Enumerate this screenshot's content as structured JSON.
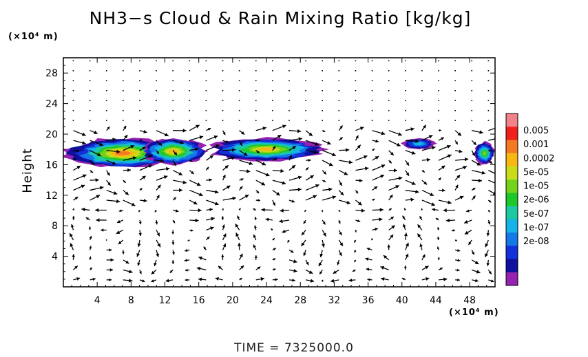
{
  "title": "NH3−s Cloud & Rain Mixing Ratio [kg/kg]",
  "y_unit": "(×10⁴ m)",
  "x_unit": "(×10⁴ m)",
  "time_label": "TIME  =  7325000.0",
  "chart_data": {
    "type": "heatmap",
    "title": "NH3−s Cloud & Rain Mixing Ratio [kg/kg]",
    "xlabel": "",
    "ylabel": "Height",
    "xlim": [
      0,
      51
    ],
    "ylim": [
      0,
      30
    ],
    "x_ticks": [
      "4",
      "8",
      "12",
      "16",
      "20",
      "24",
      "28",
      "32",
      "36",
      "40",
      "44",
      "48"
    ],
    "y_ticks": [
      "4",
      "8",
      "12",
      "16",
      "20",
      "24",
      "28"
    ],
    "colorbar": {
      "labels": [
        "0.005",
        "0.001",
        "0.0002",
        "5e-05",
        "1e-05",
        "2e-06",
        "5e-07",
        "1e-07",
        "2e-08"
      ],
      "colors": [
        "#f2828a",
        "#f0201c",
        "#f47a22",
        "#f8b814",
        "#c8dc18",
        "#74d21c",
        "#1ec82a",
        "#1ec8a0",
        "#14b4e8",
        "#1478e6",
        "#1430d8",
        "#10109e",
        "#9622b0"
      ]
    },
    "cloud_regions": [
      {
        "x_range": [
          0,
          14
        ],
        "y_range": [
          15.5,
          19.5
        ],
        "peak": "0.001"
      },
      {
        "x_range": [
          9,
          17
        ],
        "y_range": [
          16,
          19.5
        ],
        "peak": "0.0002"
      },
      {
        "x_range": [
          17,
          31
        ],
        "y_range": [
          16.5,
          19.5
        ],
        "peak": "0.0002"
      },
      {
        "x_range": [
          40,
          44
        ],
        "y_range": [
          18,
          19.5
        ],
        "peak": "1e-07"
      },
      {
        "x_range": [
          48.5,
          51
        ],
        "y_range": [
          16,
          19
        ],
        "peak": "1e-05"
      }
    ],
    "vector_field": true
  }
}
